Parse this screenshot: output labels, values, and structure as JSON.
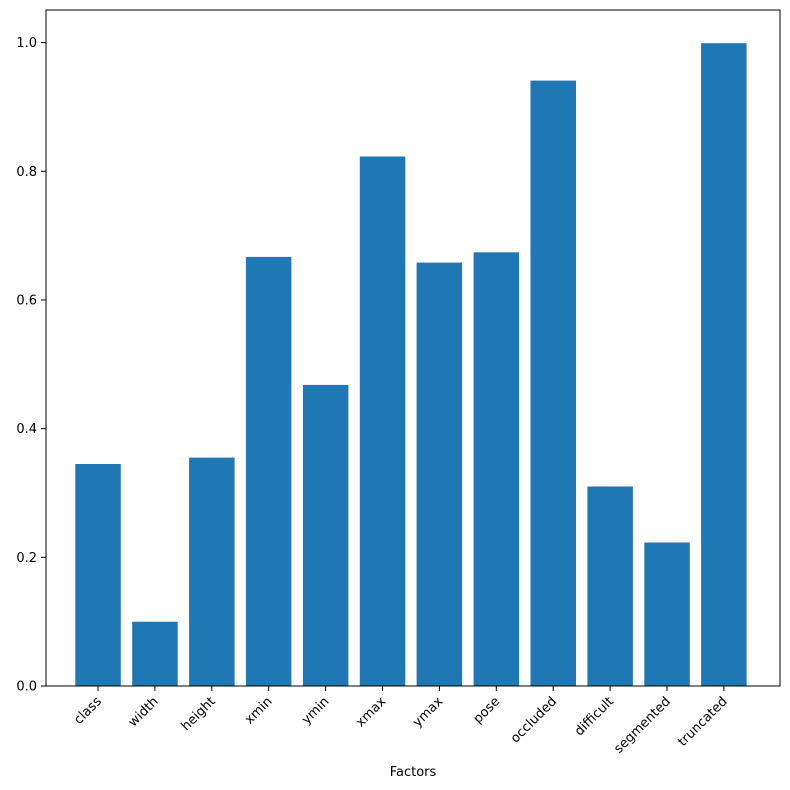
{
  "chart_data": {
    "type": "bar",
    "title": "",
    "xlabel": "Factors",
    "ylabel": "",
    "categories": [
      "class",
      "width",
      "height",
      "xmin",
      "ymin",
      "xmax",
      "ymax",
      "pose",
      "occluded",
      "difficult",
      "segmented",
      "truncated"
    ],
    "values": [
      0.345,
      0.1,
      0.355,
      0.667,
      0.468,
      0.823,
      0.658,
      0.674,
      0.941,
      0.31,
      0.223,
      0.999
    ],
    "ylim": [
      0,
      1.05
    ],
    "yticks": [
      0.0,
      0.2,
      0.4,
      0.6,
      0.8,
      1.0
    ],
    "ytick_labels": [
      "0.0",
      "0.2",
      "0.4",
      "0.6",
      "0.8",
      "1.0"
    ],
    "x_tick_rotation": "45 degrees",
    "grid": false,
    "legend": "none",
    "bar_color": "#1f77b4"
  }
}
